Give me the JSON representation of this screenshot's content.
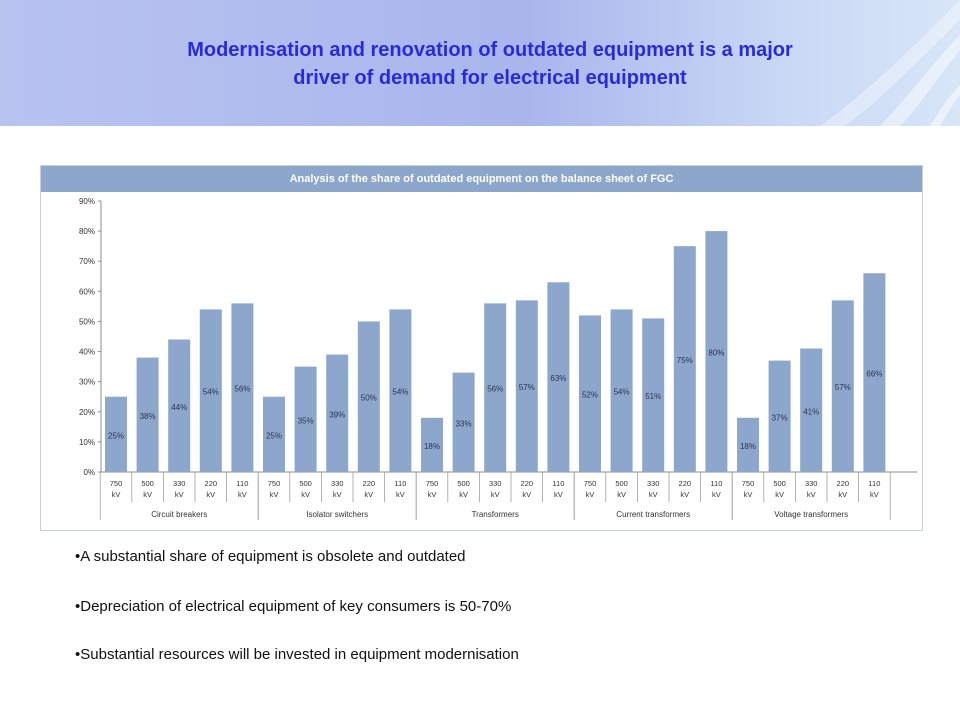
{
  "title_line1": "Modernisation and renovation of outdated equipment is a major",
  "title_line2": "driver of demand for electrical equipment",
  "colors": {
    "bar": "#8ca6cc",
    "header_band": "#a9b6ec",
    "title": "#2a2ad8"
  },
  "chart_data": {
    "type": "bar",
    "title": "Analysis of the share of outdated equipment on the balance sheet of FGC",
    "ylim": [
      0,
      90
    ],
    "yticks": [
      "0%",
      "10%",
      "20%",
      "30%",
      "40%",
      "50%",
      "60%",
      "70%",
      "80%",
      "90%"
    ],
    "groups": [
      {
        "name": "Circuit breakers",
        "categories": [
          "750 kV",
          "500 kV",
          "330 kV",
          "220 kV",
          "110 kV"
        ],
        "values": [
          25,
          38,
          44,
          54,
          56
        ]
      },
      {
        "name": "Isolator switchers",
        "categories": [
          "750 kV",
          "500 kV",
          "330 kV",
          "220 kV",
          "110 kV"
        ],
        "values": [
          25,
          35,
          39,
          50,
          54
        ]
      },
      {
        "name": "Transformers",
        "categories": [
          "750 kV",
          "500 kV",
          "330 kV",
          "220 kV",
          "110 kV"
        ],
        "values": [
          18,
          33,
          56,
          57,
          63
        ]
      },
      {
        "name": "Current transformers",
        "categories": [
          "750 kV",
          "500 kV",
          "330 kV",
          "220 kV",
          "110 kV"
        ],
        "values": [
          52,
          54,
          51,
          75,
          80
        ]
      },
      {
        "name": "Voltage transformers",
        "categories": [
          "750 kV",
          "500 kV",
          "330 kV",
          "220 kV",
          "110 kV"
        ],
        "values": [
          18,
          37,
          41,
          57,
          66
        ]
      }
    ],
    "value_suffix": "%",
    "grid": false
  },
  "bullets": [
    "•A substantial share of equipment is obsolete and outdated",
    "•Depreciation of electrical equipment of key consumers is 50-70%",
    "•Substantial resources will be invested in equipment modernisation"
  ]
}
